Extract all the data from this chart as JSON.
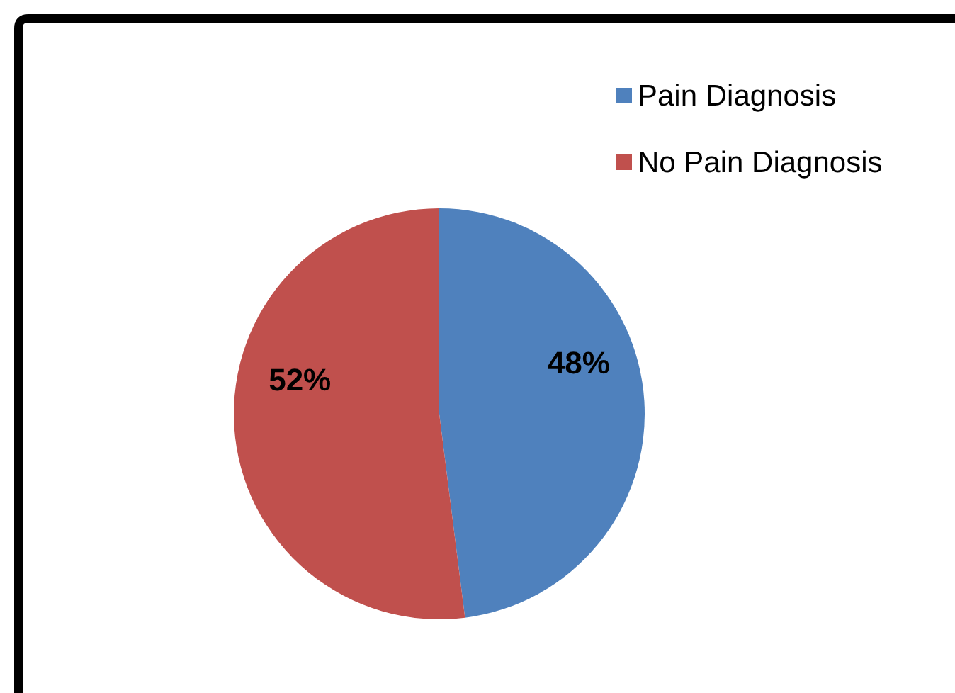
{
  "chart_data": {
    "type": "pie",
    "categories": [
      "Pain Diagnosis",
      "No Pain Diagnosis"
    ],
    "values": [
      48,
      52
    ],
    "colors": [
      "#4f81bd",
      "#c0504d"
    ],
    "value_labels": [
      "48%",
      "52%"
    ],
    "legend": "top right"
  }
}
